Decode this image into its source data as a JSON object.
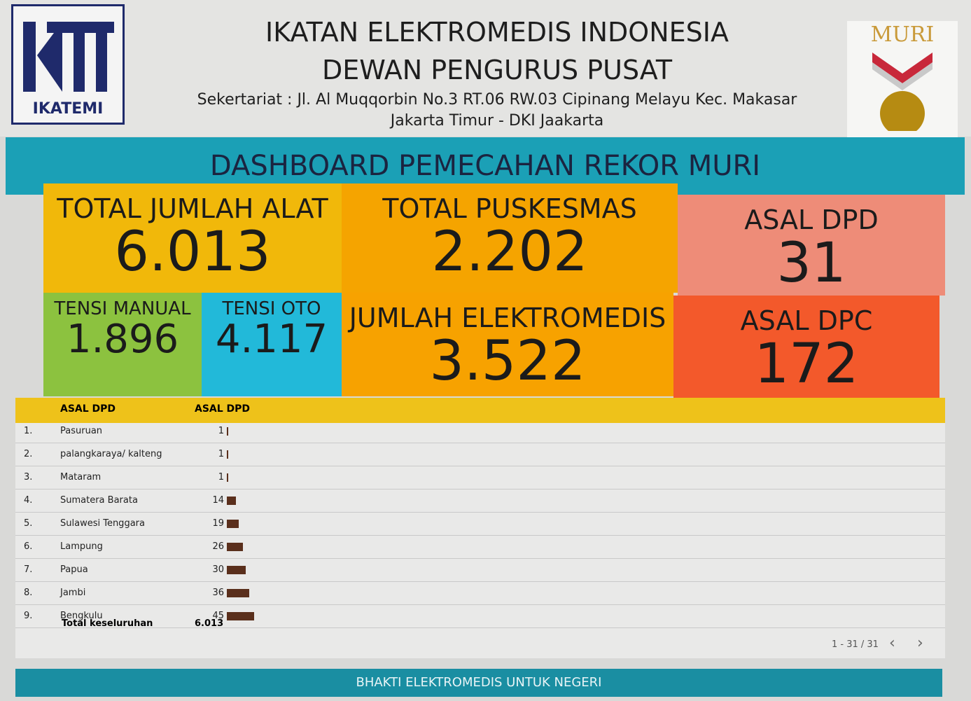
{
  "header": {
    "logo_text": "IKATEMI",
    "org": "IKATAN ELEKTROMEDIS INDONESIA",
    "subtitle": "DEWAN PENGURUS PUSAT",
    "address_1": "Sekertariat : Jl. Al Muqqorbin No.3 RT.06 RW.03 Cipinang Melayu Kec. Makasar",
    "address_2": "Jakarta Timur - DKI Jaakarta",
    "badge_text": "MURI"
  },
  "banner": "DASHBOARD PEMECAHAN REKOR MURI",
  "kpis": [
    {
      "label": "TOTAL JUMLAH ALAT",
      "value": "6.013"
    },
    {
      "label": "TOTAL PUSKESMAS",
      "value": "2.202"
    },
    {
      "label": "ASAL DPD",
      "value": "31"
    },
    {
      "label": "TENSI MANUAL",
      "value": "1.896"
    },
    {
      "label": "TENSI OTO",
      "value": "4.117"
    },
    {
      "label": "JUMLAH ELEKTROMEDIS",
      "value": "3.522"
    },
    {
      "label": "ASAL DPC",
      "value": "172"
    }
  ],
  "table": {
    "headers": [
      "ASAL DPD",
      "ASAL DPD"
    ],
    "rows": [
      [
        "1.",
        "Pasuruan",
        1
      ],
      [
        "2.",
        "palangkaraya/ kalteng",
        1
      ],
      [
        "3.",
        "Mataram",
        1
      ],
      [
        "4.",
        "Sumatera Barata",
        14
      ],
      [
        "5.",
        "Sulawesi Tenggara",
        19
      ],
      [
        "6.",
        "Lampung",
        26
      ],
      [
        "7.",
        "Papua",
        30
      ],
      [
        "8.",
        "Jambi",
        36
      ],
      [
        "9.",
        "Bengkulu",
        45
      ]
    ],
    "total_label": "Total keseluruhan",
    "total_value": "6.013",
    "pagination": "1 - 31 / 31"
  },
  "footer": "BHAKTI ELEKTROMEDIS UNTUK NEGERI"
}
